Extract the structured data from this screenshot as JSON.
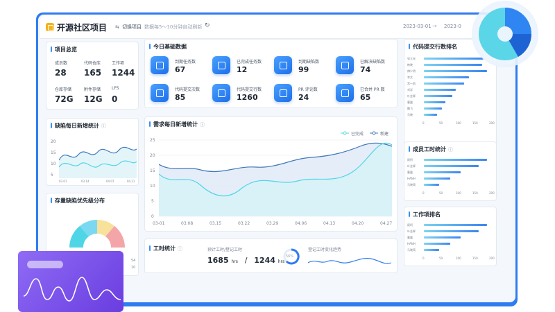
{
  "header": {
    "title": "开源社区项目",
    "switch_label": "切换项目",
    "refresh_note": "数据每5～10分钟自动刷新",
    "date_start": "2023-03-01",
    "date_end": "2023-0"
  },
  "overview": {
    "title": "项目总览",
    "items": [
      {
        "label": "成员数",
        "value": "28"
      },
      {
        "label": "代码仓库",
        "value": "165"
      },
      {
        "label": "工作项",
        "value": "1244"
      },
      {
        "label": "仓库存储",
        "value": "72G"
      },
      {
        "label": "附件存储",
        "value": "12G"
      },
      {
        "label": "LFS",
        "value": "0"
      }
    ]
  },
  "today": {
    "title": "今日基础数据",
    "metrics": [
      {
        "label": "到期任务数",
        "value": "67"
      },
      {
        "label": "已完成任务数",
        "value": "12"
      },
      {
        "label": "到期缺陷数",
        "value": "99"
      },
      {
        "label": "已解决缺陷数",
        "value": "74"
      },
      {
        "label": "代码提交次数",
        "value": "85"
      },
      {
        "label": "代码提交行数",
        "value": "1260"
      },
      {
        "label": "PR 评论数",
        "value": "24"
      },
      {
        "label": "已合并 PR 数",
        "value": "65"
      }
    ]
  },
  "defect_daily": {
    "title": "缺陷每日新增统计",
    "y_ticks": [
      "20",
      "15",
      "10",
      "5"
    ],
    "x_ticks": [
      "03.01",
      "03.14",
      "04.07",
      "04.21"
    ]
  },
  "priority": {
    "title": "存量缺陷优先级分布",
    "labels": [
      "54",
      "10"
    ]
  },
  "demand": {
    "title": "需求每日新增统计",
    "legend": [
      "已完成",
      "新建"
    ],
    "colors": {
      "done": "#4fd6e6",
      "new": "#3f78b8"
    },
    "y_ticks": [
      "25",
      "20",
      "15",
      "10",
      "5",
      "0"
    ],
    "x_ticks": [
      "03-01",
      "03.08",
      "03.15",
      "03.22",
      "03.29",
      "04.06",
      "04.13",
      "04.20",
      "04.27"
    ]
  },
  "work_time": {
    "title": "工时统计",
    "est_label": "预计工时/登记工时",
    "est_value": "1685",
    "reg_value": "1244",
    "unit": "hrs",
    "separator": "/",
    "ring_label": "56%",
    "trend_label": "登记工时变化趋势"
  },
  "commit_rank": {
    "title": "代码提交行数排名",
    "bars": [
      {
        "name": "张大米",
        "value": 180
      },
      {
        "name": "韩晓",
        "value": 175
      },
      {
        "name": "傅少明",
        "value": 190
      },
      {
        "name": "李文",
        "value": 135
      },
      {
        "name": "常一航",
        "value": 120
      },
      {
        "name": "刘洋",
        "value": 95
      },
      {
        "name": "叶金辉",
        "value": 85
      },
      {
        "name": "曹露",
        "value": 65
      },
      {
        "name": "鹏飞",
        "value": 55
      },
      {
        "name": "马晓",
        "value": 40
      }
    ],
    "x_ticks": [
      "0",
      "50",
      "100",
      "150",
      "200"
    ]
  },
  "member_hours": {
    "title": "成员工时统计",
    "bars": [
      {
        "name": "顾柯",
        "value": 190
      },
      {
        "name": "叶金辉",
        "value": 165
      },
      {
        "name": "曹露",
        "value": 110
      },
      {
        "name": "HANH",
        "value": 80
      },
      {
        "name": "马晓筠",
        "value": 45
      }
    ],
    "x_ticks": [
      "0",
      "50",
      "100",
      "150",
      "200"
    ]
  },
  "work_rank": {
    "title": "工作项排名",
    "bars": [
      {
        "name": "顾柯",
        "value": 190
      },
      {
        "name": "叶金辉",
        "value": 165
      },
      {
        "name": "曹露",
        "value": 110
      },
      {
        "name": "HANH",
        "value": 80
      },
      {
        "name": "马晓筠",
        "value": 45
      }
    ],
    "x_ticks": [
      "0",
      "50",
      "100",
      "150",
      "200"
    ]
  }
}
